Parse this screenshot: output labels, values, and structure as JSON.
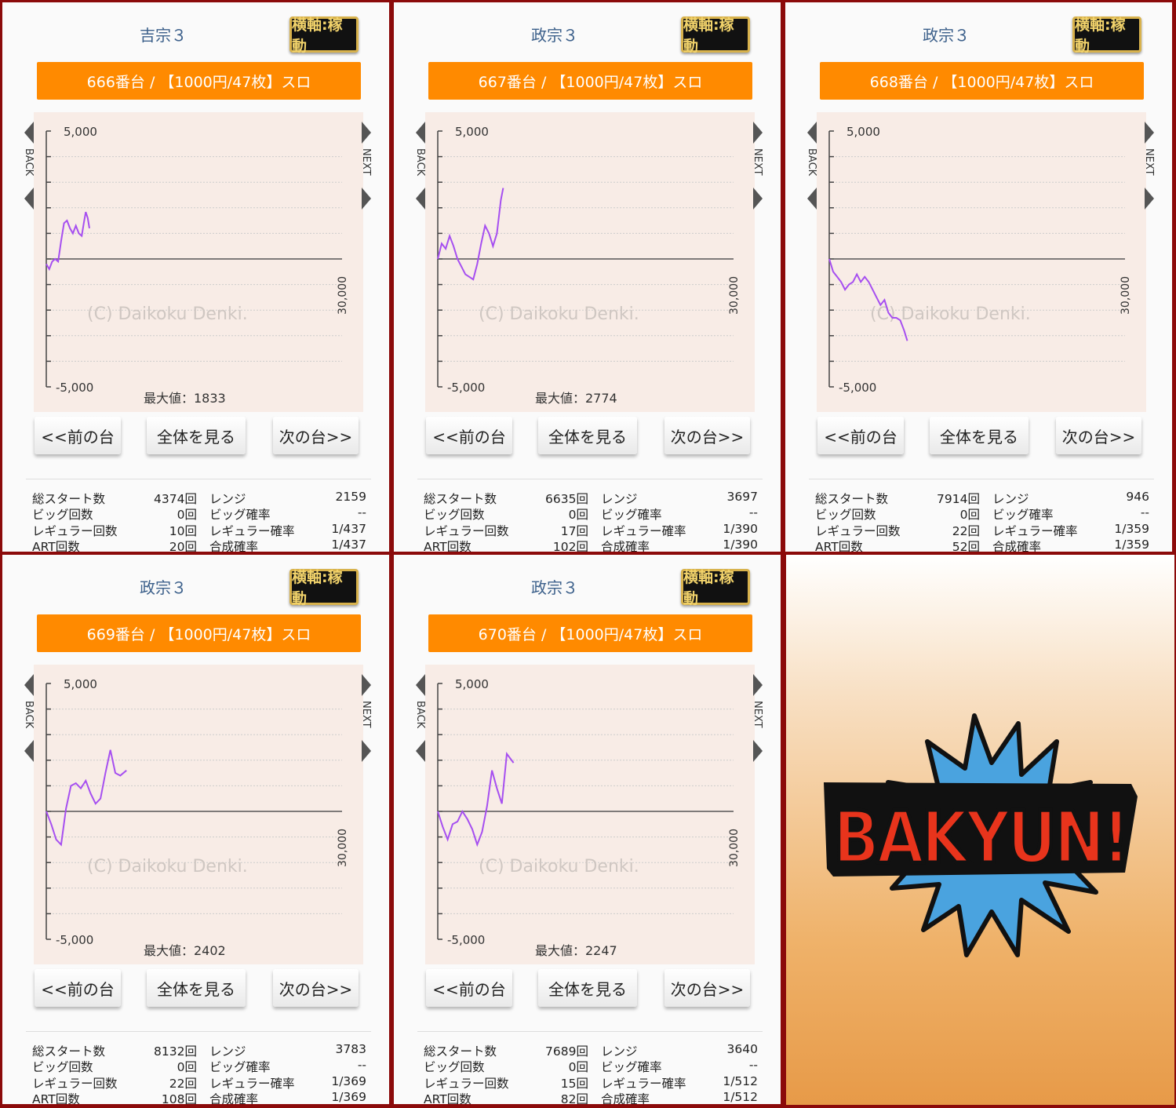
{
  "nav": {
    "prev": "<<前の台",
    "all": "全体を見る",
    "next": "次の台>>"
  },
  "axis_toggle": "横軸:稼動",
  "stat_labels": {
    "total_start": "総スタート数",
    "big": "ビッグ回数",
    "reg": "レギュラー回数",
    "art": "ART回数",
    "range": "レンジ",
    "big_rate": "ビッグ確率",
    "reg_rate": "レギュラー確率",
    "combined_rate": "合成確率"
  },
  "chart_text": {
    "back": "BACK",
    "next": "NEXT",
    "watermark": "(C) Daikoku Denki.",
    "xmax_label": "30,000",
    "max_prefix": "最大値："
  },
  "chart_data": [
    {
      "type": "line",
      "title": "666番台 / 【1000円/47枚】スロ",
      "ylim": [
        -5000,
        5000
      ],
      "yticks": [
        "5,000",
        "-5,000"
      ],
      "xlim": [
        0,
        30000
      ],
      "x": [
        0,
        300,
        600,
        900,
        1200,
        1500,
        1800,
        2100,
        2400,
        2700,
        3000,
        3300,
        3600,
        3800,
        4000,
        4200,
        4374
      ],
      "y": [
        -200,
        -400,
        -100,
        0,
        -100,
        700,
        1400,
        1500,
        1200,
        1000,
        1300,
        1000,
        900,
        1400,
        1833,
        1600,
        1200
      ]
    },
    {
      "type": "line",
      "title": "667番台 / 【1000円/47枚】スロ",
      "ylim": [
        -5000,
        5000
      ],
      "yticks": [
        "5,000",
        "-5,000"
      ],
      "xlim": [
        0,
        30000
      ],
      "x": [
        0,
        400,
        800,
        1200,
        1600,
        2000,
        2400,
        2800,
        3200,
        3600,
        4000,
        4400,
        4800,
        5200,
        5600,
        6000,
        6400,
        6635
      ],
      "y": [
        0,
        600,
        400,
        900,
        500,
        0,
        -300,
        -600,
        -700,
        -800,
        -200,
        600,
        1300,
        1000,
        500,
        1000,
        2300,
        2774
      ]
    },
    {
      "type": "line",
      "title": "668番台 / 【1000円/47枚】スロ",
      "ylim": [
        -5000,
        5000
      ],
      "yticks": [
        "5,000",
        "-5,000"
      ],
      "xlim": [
        0,
        30000
      ],
      "x": [
        0,
        400,
        800,
        1200,
        1600,
        2000,
        2400,
        2800,
        3200,
        3600,
        4000,
        4400,
        4800,
        5200,
        5600,
        6000,
        6400,
        6800,
        7200,
        7600,
        7914
      ],
      "y": [
        0,
        -500,
        -700,
        -900,
        -1200,
        -1000,
        -900,
        -600,
        -900,
        -700,
        -900,
        -1200,
        -1500,
        -1800,
        -1600,
        -2100,
        -2300,
        -2300,
        -2400,
        -2800,
        -3200
      ]
    },
    {
      "type": "line",
      "title": "669番台 / 【1000円/47枚】スロ",
      "ylim": [
        -5000,
        5000
      ],
      "yticks": [
        "5,000",
        "-5,000"
      ],
      "xlim": [
        0,
        30000
      ],
      "x": [
        0,
        500,
        1000,
        1500,
        2000,
        2500,
        3000,
        3500,
        4000,
        4500,
        5000,
        5500,
        6000,
        6500,
        7000,
        7500,
        8132
      ],
      "y": [
        0,
        -500,
        -1100,
        -1300,
        100,
        1000,
        1100,
        900,
        1200,
        700,
        300,
        500,
        1500,
        2402,
        1500,
        1400,
        1600
      ]
    },
    {
      "type": "line",
      "title": "670番台 / 【1000円/47枚】スロ",
      "ylim": [
        -5000,
        5000
      ],
      "yticks": [
        "5,000",
        "-5,000"
      ],
      "xlim": [
        0,
        30000
      ],
      "x": [
        0,
        500,
        1000,
        1500,
        2000,
        2500,
        3000,
        3500,
        4000,
        4500,
        5000,
        5500,
        6000,
        6500,
        7000,
        7689
      ],
      "y": [
        0,
        -600,
        -1100,
        -500,
        -400,
        0,
        -300,
        -700,
        -1300,
        -800,
        200,
        1600,
        900,
        300,
        2247,
        1900
      ]
    }
  ],
  "panels": [
    {
      "title": "吉宗３",
      "banner": "666番台 / 【1000円/47枚】スロ",
      "max": "1833",
      "stats": {
        "total_start": "4374回",
        "big": "0回",
        "reg": "10回",
        "art": "20回",
        "range": "2159",
        "big_rate": "--",
        "reg_rate": "1/437",
        "combined_rate": "1/437"
      }
    },
    {
      "title": "政宗３",
      "banner": "667番台 / 【1000円/47枚】スロ",
      "max": "2774",
      "stats": {
        "total_start": "6635回",
        "big": "0回",
        "reg": "17回",
        "art": "102回",
        "range": "3697",
        "big_rate": "--",
        "reg_rate": "1/390",
        "combined_rate": "1/390"
      }
    },
    {
      "title": "政宗３",
      "banner": "668番台 / 【1000円/47枚】スロ",
      "max": "",
      "stats": {
        "total_start": "7914回",
        "big": "0回",
        "reg": "22回",
        "art": "52回",
        "range": "946",
        "big_rate": "--",
        "reg_rate": "1/359",
        "combined_rate": "1/359"
      }
    },
    {
      "title": "政宗３",
      "banner": "669番台 / 【1000円/47枚】スロ",
      "max": "2402",
      "stats": {
        "total_start": "8132回",
        "big": "0回",
        "reg": "22回",
        "art": "108回",
        "range": "3783",
        "big_rate": "--",
        "reg_rate": "1/369",
        "combined_rate": "1/369"
      }
    },
    {
      "title": "政宗３",
      "banner": "670番台 / 【1000円/47枚】スロ",
      "max": "2247",
      "stats": {
        "total_start": "7689回",
        "big": "0回",
        "reg": "15回",
        "art": "82回",
        "range": "3640",
        "big_rate": "--",
        "reg_rate": "1/512",
        "combined_rate": "1/512"
      }
    }
  ],
  "logo": {
    "text": "BAKYUN!",
    "colors": {
      "burst": "#4aa3df",
      "letters": "#e8341c",
      "outline": "#111111"
    }
  },
  "colors": {
    "frame": "#8b0a0a",
    "banner": "#ff8a00",
    "line": "#a64ff0",
    "chart_bg": "#f8ece6",
    "title": "#3b5f8a"
  }
}
